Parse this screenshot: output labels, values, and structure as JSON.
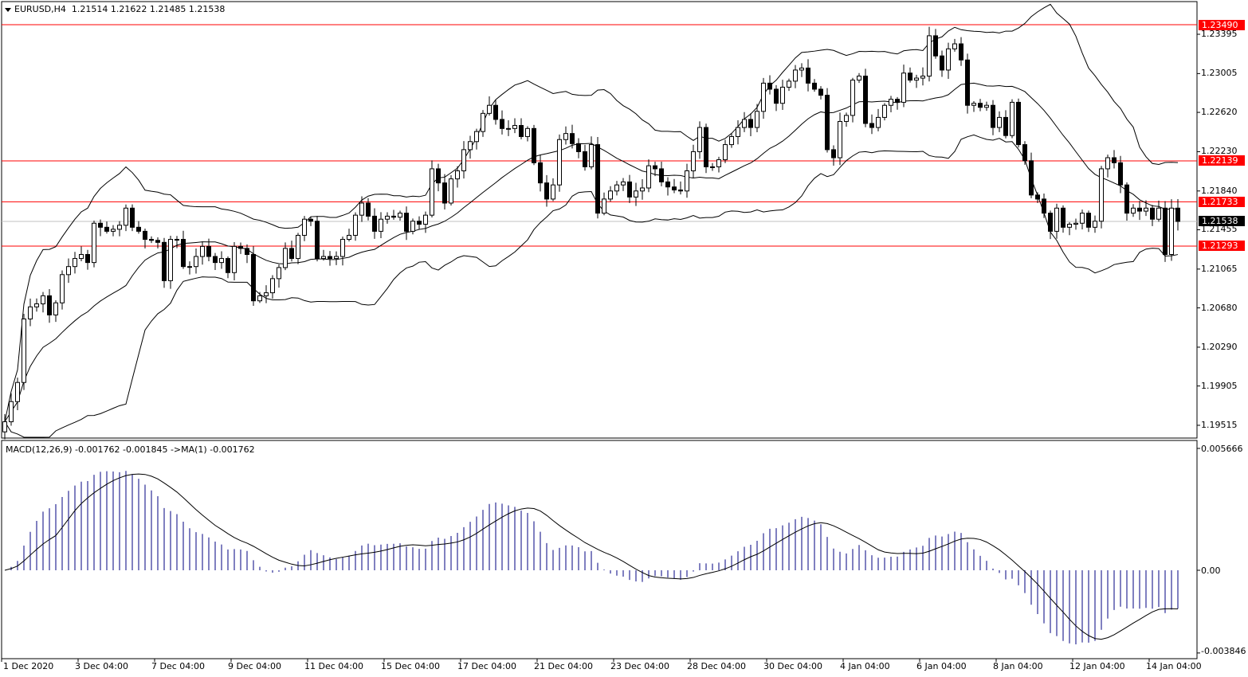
{
  "header": {
    "symbol": "EURUSD,H4",
    "open": "1.21514",
    "high": "1.21622",
    "low": "1.21485",
    "close": "1.21538"
  },
  "macd_header": {
    "label": "MACD(12,26,9) -0.001762 -0.001845  ->MA(1) -0.001762"
  },
  "price_axis": [
    "1.23395",
    "1.23005",
    "1.22620",
    "1.22230",
    "1.21840",
    "1.21455",
    "1.21065",
    "1.20680",
    "1.20290",
    "1.19905",
    "1.19515"
  ],
  "price_ticks": [
    1.23395,
    1.23005,
    1.2262,
    1.2223,
    1.2184,
    1.21455,
    1.21065,
    1.2068,
    1.2029,
    1.19905,
    1.19515
  ],
  "horizontal_lines": [
    {
      "label": "1.23490",
      "value": 1.2349,
      "color": "#ff0000"
    },
    {
      "label": "1.22139",
      "value": 1.22139,
      "color": "#ff0000"
    },
    {
      "label": "1.21733",
      "value": 1.21733,
      "color": "#ff0000"
    },
    {
      "label": "1.21293",
      "value": 1.21293,
      "color": "#ff0000"
    }
  ],
  "current_price": {
    "label": "1.21538",
    "value": 1.21538,
    "color": "#000000"
  },
  "macd_axis": {
    "max_label": "0.005666",
    "zero_label": "0.00",
    "min_label": "-0.003846",
    "max": 0.005666,
    "min": -0.003846
  },
  "time_axis": [
    "1 Dec 2020",
    "3 Dec 04:00",
    "7 Dec 04:00",
    "9 Dec 04:00",
    "11 Dec 04:00",
    "15 Dec 04:00",
    "17 Dec 04:00",
    "21 Dec 04:00",
    "23 Dec 04:00",
    "28 Dec 04:00",
    "30 Dec 04:00",
    "4 Jan 04:00",
    "6 Jan 04:00",
    "8 Jan 04:00",
    "12 Jan 04:00",
    "14 Jan 04:00"
  ],
  "colors": {
    "line": "#ff0000",
    "histogram": "#000080",
    "candle_up": "#ffffff",
    "candle_down": "#000000"
  },
  "chart_data": {
    "type": "candlestick",
    "symbol": "EURUSD",
    "timeframe": "H4",
    "ylim": [
      1.19389,
      1.23719
    ],
    "indicators": [
      "Bollinger Bands(20,2)",
      "MACD(12,26,9)"
    ],
    "closes": [
      1.1955,
      1.1975,
      1.1994,
      1.2057,
      1.2069,
      1.2072,
      1.208,
      1.2061,
      1.2073,
      1.2101,
      1.2109,
      1.2117,
      1.2121,
      1.2113,
      1.2152,
      1.2148,
      1.2144,
      1.2146,
      1.215,
      1.2167,
      1.2148,
      1.2144,
      1.2136,
      1.2135,
      1.2133,
      1.2095,
      1.2136,
      1.2136,
      1.2109,
      1.2109,
      1.2119,
      1.2129,
      1.2119,
      1.2113,
      1.2117,
      1.2103,
      1.2129,
      1.2127,
      1.2121,
      1.2075,
      1.208,
      1.2083,
      1.2097,
      1.2108,
      1.2127,
      1.2117,
      1.214,
      1.2156,
      1.2154,
      1.2117,
      1.2119,
      1.2117,
      1.2119,
      1.2136,
      1.214,
      1.216,
      1.2172,
      1.2159,
      1.2144,
      1.2156,
      1.2159,
      1.2158,
      1.2162,
      1.2144,
      1.2154,
      1.2151,
      1.216,
      1.2206,
      1.2192,
      1.2172,
      1.2196,
      1.2204,
      1.2225,
      1.2233,
      1.2243,
      1.2261,
      1.2269,
      1.2255,
      1.2246,
      1.2246,
      1.2249,
      1.2238,
      1.2246,
      1.2212,
      1.2192,
      1.2176,
      1.219,
      1.2235,
      1.2241,
      1.2231,
      1.2223,
      1.2208,
      1.223,
      1.2162,
      1.2176,
      1.2184,
      1.219,
      1.2193,
      1.2178,
      1.2184,
      1.2187,
      1.2209,
      1.2206,
      1.2193,
      1.2188,
      1.2185,
      1.2184,
      1.2204,
      1.2223,
      1.2247,
      1.2208,
      1.2208,
      1.2215,
      1.223,
      1.2238,
      1.2247,
      1.2255,
      1.2247,
      1.2263,
      1.2291,
      1.2285,
      1.2271,
      1.2287,
      1.2293,
      1.2304,
      1.2306,
      1.2291,
      1.2285,
      1.2279,
      1.2225,
      1.2217,
      1.2253,
      1.2259,
      1.2294,
      1.2298,
      1.2251,
      1.2247,
      1.2257,
      1.2269,
      1.2275,
      1.2272,
      1.2301,
      1.2294,
      1.2296,
      1.2298,
      1.2338,
      1.2318,
      1.2304,
      1.2325,
      1.233,
      1.2314,
      1.2269,
      1.2271,
      1.2267,
      1.2269,
      1.2247,
      1.2257,
      1.2239,
      1.2272,
      1.223,
      1.2214,
      1.218,
      1.2176,
      1.2162,
      1.2144,
      1.2167,
      1.2148,
      1.2151,
      1.2152,
      1.2162,
      1.2148,
      1.2154,
      1.2206,
      1.2217,
      1.2212,
      1.219,
      1.2162,
      1.2167,
      1.2164,
      1.2167,
      1.2156,
      1.2167,
      1.2121,
      1.2167,
      1.21538
    ]
  }
}
